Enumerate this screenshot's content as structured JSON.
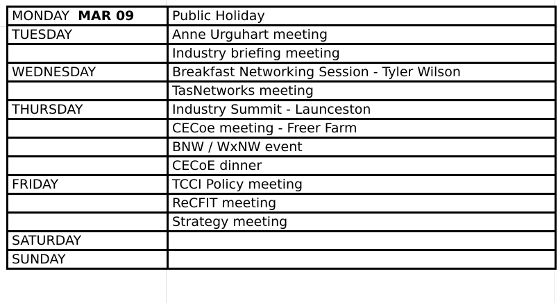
{
  "schedule": {
    "rows": [
      {
        "day": "MONDAY",
        "date": "MAR 09",
        "event": "Public Holiday"
      },
      {
        "day": "TUESDAY",
        "date": "",
        "event": "Anne Urguhart meeting"
      },
      {
        "day": "",
        "date": "",
        "event": "Industry briefing meeting"
      },
      {
        "day": "WEDNESDAY",
        "date": "",
        "event": "Breakfast Networking Session - Tyler Wilson"
      },
      {
        "day": "",
        "date": "",
        "event": "TasNetworks meeting"
      },
      {
        "day": "THURSDAY",
        "date": "",
        "event": "Industry Summit - Launceston"
      },
      {
        "day": "",
        "date": "",
        "event": "CECoe meeting - Freer Farm"
      },
      {
        "day": "",
        "date": "",
        "event": "BNW / WxNW event"
      },
      {
        "day": "",
        "date": "",
        "event": "CECoE dinner"
      },
      {
        "day": "FRIDAY",
        "date": "",
        "event": "TCCI Policy meeting"
      },
      {
        "day": "",
        "date": "",
        "event": "ReCFIT meeting"
      },
      {
        "day": "",
        "date": "",
        "event": "Strategy meeting"
      },
      {
        "day": "SATURDAY",
        "date": "",
        "event": ""
      },
      {
        "day": "SUNDAY",
        "date": "",
        "event": ""
      }
    ]
  }
}
